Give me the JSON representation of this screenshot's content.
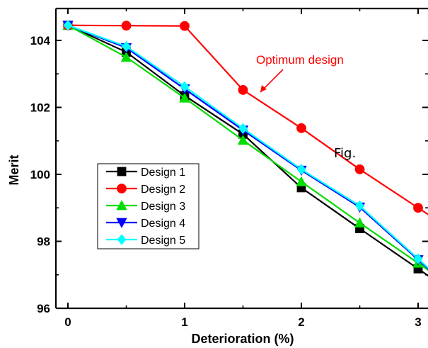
{
  "chart_data": {
    "type": "line",
    "title": "",
    "xlabel": "Deterioration (%)",
    "ylabel": "Merit",
    "xlim": [
      -0.1,
      3.05
    ],
    "ylim": [
      96,
      104.9
    ],
    "xticks": [
      0,
      1,
      2,
      3
    ],
    "xtick_labels": [
      "0",
      "1",
      "2",
      "3"
    ],
    "yticks": [
      96,
      98,
      100,
      102,
      104
    ],
    "ytick_labels": [
      "96",
      "98",
      "100",
      "102",
      "104"
    ],
    "grid": false,
    "legend_position": "center-left",
    "x": [
      0,
      0.5,
      1,
      1.5,
      2,
      2.5,
      3
    ],
    "series": [
      {
        "name": "Design 1",
        "color": "#000000",
        "marker": "square",
        "values": [
          104.45,
          103.65,
          102.35,
          101.2,
          99.6,
          98.38,
          97.18
        ]
      },
      {
        "name": "Design 2",
        "color": "#ff0000",
        "marker": "circle",
        "values": [
          104.45,
          104.44,
          104.43,
          102.52,
          101.38,
          100.15,
          99.0
        ]
      },
      {
        "name": "Design 3",
        "color": "#00dd00",
        "marker": "triangle-up",
        "values": [
          104.45,
          103.5,
          102.28,
          101.02,
          99.78,
          98.55,
          97.35
        ]
      },
      {
        "name": "Design 4",
        "color": "#0000ff",
        "marker": "triangle-down",
        "values": [
          104.45,
          103.78,
          102.55,
          101.32,
          100.12,
          99.02,
          97.45
        ]
      },
      {
        "name": "Design 5",
        "color": "#00ffff",
        "marker": "diamond",
        "values": [
          104.45,
          103.82,
          102.62,
          101.37,
          100.15,
          99.06,
          97.48
        ]
      }
    ],
    "annotations": [
      {
        "text": "Optimum design",
        "color": "#ff0000",
        "points_to_x": 1.65,
        "points_to_y": 102.4
      },
      {
        "text": "Fig.",
        "color": "#000000"
      }
    ]
  }
}
